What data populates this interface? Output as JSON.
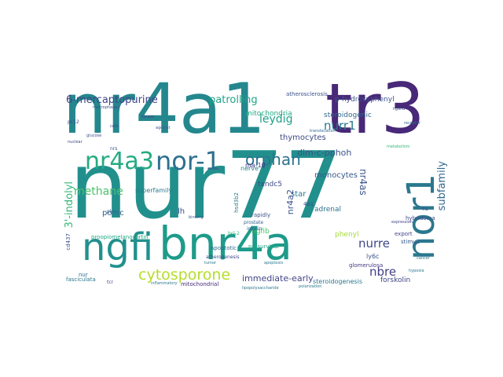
{
  "words": [
    {
      "text": "nur77",
      "color": "#21908d"
    },
    {
      "text": "nr4a1",
      "color": "#24878e"
    },
    {
      "text": "tr3",
      "color": "#482878"
    },
    {
      "text": "ngfi",
      "color": "#21908d"
    },
    {
      "text": "bnr4a",
      "color": "#1e9b8a"
    },
    {
      "text": "nor1",
      "color": "#2a788e"
    },
    {
      "text": "nr4a3",
      "color": "#25ab82"
    },
    {
      "text": "nor-1",
      "color": "#2d708e"
    },
    {
      "text": "orphan",
      "color": "#2c728e"
    },
    {
      "text": "cytosporone",
      "color": "#b5de2b"
    },
    {
      "text": "6-mercaptopurine",
      "color": "#414487"
    },
    {
      "text": "patrolling",
      "color": "#20a486"
    },
    {
      "text": "p-hydroxyphenyl",
      "color": "#3b528b"
    },
    {
      "text": "leydig",
      "color": "#1fa187"
    },
    {
      "text": "nurr1",
      "color": "#2a788e"
    },
    {
      "text": "steroidogenic",
      "color": "#31688e"
    },
    {
      "text": "mitochondria",
      "color": "#22a884"
    },
    {
      "text": "thymocytes",
      "color": "#3e4989"
    },
    {
      "text": "dim-c-pphoh",
      "color": "#3b528b"
    },
    {
      "text": "nr4as",
      "color": "#3b528b"
    },
    {
      "text": "subfamily",
      "color": "#31688e"
    },
    {
      "text": "nurre",
      "color": "#3e4989"
    },
    {
      "text": "nbre",
      "color": "#433e85"
    },
    {
      "text": "methane",
      "color": "#4ac16d"
    },
    {
      "text": "3'-indolyl",
      "color": "#35b779"
    },
    {
      "text": "superfamily",
      "color": "#2a788e"
    },
    {
      "text": "pomc",
      "color": "#33638d"
    },
    {
      "text": "lh",
      "color": "#3e4989"
    },
    {
      "text": "monocytes",
      "color": "#38598c"
    },
    {
      "text": "star",
      "color": "#2a788e"
    },
    {
      "text": "nr4a2",
      "color": "#3b528b"
    },
    {
      "text": "adrenal",
      "color": "#2d708e"
    },
    {
      "text": "nerve",
      "color": "#26828e"
    },
    {
      "text": "ma-10",
      "color": "#443983"
    },
    {
      "text": "txndc5",
      "color": "#3e4989"
    },
    {
      "text": "phenyl",
      "color": "#a5db36"
    },
    {
      "text": "ngfib",
      "color": "#4ac16d"
    },
    {
      "text": "immediate-early",
      "color": "#414487"
    },
    {
      "text": "steroidogenesis",
      "color": "#2a788e"
    },
    {
      "text": "forskolin",
      "color": "#414487"
    },
    {
      "text": "ly6c",
      "color": "#3b528b"
    },
    {
      "text": "glomerulosa",
      "color": "#443983"
    },
    {
      "text": "apoptotic",
      "color": "#31688e"
    },
    {
      "text": "prosurvival",
      "color": "#20a486"
    },
    {
      "text": "proopiomelanocortin",
      "color": "#22a884"
    },
    {
      "text": "cd437",
      "color": "#3b528b"
    },
    {
      "text": "nur",
      "color": "#31688e"
    },
    {
      "text": "fasciculata",
      "color": "#2a788e"
    },
    {
      "text": "mitochondrial",
      "color": "#482878"
    },
    {
      "text": "atherosclerosis",
      "color": "#3b528b"
    },
    {
      "text": "hybridoma",
      "color": "#3e4989"
    },
    {
      "text": "export",
      "color": "#414487"
    },
    {
      "text": "stimuli",
      "color": "#38598c"
    },
    {
      "text": "4a",
      "color": "#3b528b"
    },
    {
      "text": "hsd3b2",
      "color": "#2a788e"
    },
    {
      "text": "rapidly",
      "color": "#3b528b"
    },
    {
      "text": "4a1",
      "color": "#414487"
    },
    {
      "text": "prostate",
      "color": "#33638d"
    },
    {
      "text": "insulin",
      "color": "#38598c"
    },
    {
      "text": "atherogenesis",
      "color": "#3e4989"
    },
    {
      "text": "tcr",
      "color": "#414487"
    },
    {
      "text": "pkc",
      "color": "#31688e"
    },
    {
      "text": "nrs",
      "color": "#3b528b"
    },
    {
      "text": "bcl-2",
      "color": "#35b779"
    },
    {
      "text": "pc12",
      "color": "#3e4989"
    },
    {
      "text": "inflammatory",
      "color": "#2a788e"
    },
    {
      "text": "translocation",
      "color": "#31688e"
    },
    {
      "text": "macrophages",
      "color": "#3b528b"
    },
    {
      "text": "lipopolysaccharide",
      "color": "#2a788e"
    },
    {
      "text": "polarization",
      "color": "#2a788e"
    },
    {
      "text": "kinase",
      "color": "#414487"
    },
    {
      "text": "hypoxia",
      "color": "#2a788e"
    },
    {
      "text": "nuclear",
      "color": "#3e4989"
    },
    {
      "text": "receptor",
      "color": "#31688e"
    },
    {
      "text": "agonist",
      "color": "#38598c"
    },
    {
      "text": "ligand",
      "color": "#3b528b"
    },
    {
      "text": "binding",
      "color": "#38598c"
    },
    {
      "text": "apoptosis",
      "color": "#2a788e"
    },
    {
      "text": "cells",
      "color": "#3e4989"
    },
    {
      "text": "cancer",
      "color": "#2a788e"
    },
    {
      "text": "metabolism",
      "color": "#35b779"
    },
    {
      "text": "glucose",
      "color": "#3b528b"
    },
    {
      "text": "tumor",
      "color": "#2a788e"
    },
    {
      "text": "expression",
      "color": "#414487"
    }
  ]
}
